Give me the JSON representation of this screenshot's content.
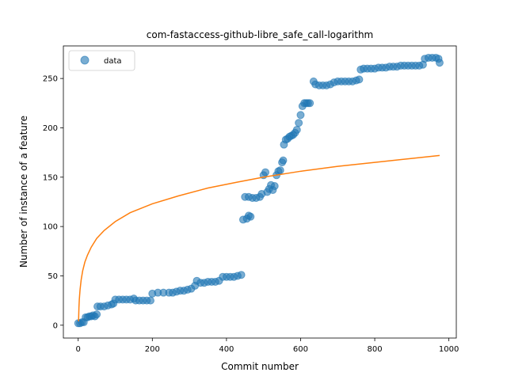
{
  "chart_data": {
    "type": "scatter",
    "title": "com-fastaccess-github-libre_safe_call-logarithm",
    "xlabel": "Commit number",
    "ylabel": "Number of instance of a feature",
    "xlim": [
      -40,
      1020
    ],
    "ylim": [
      -13,
      283
    ],
    "xticks": [
      0,
      200,
      400,
      600,
      800,
      1000
    ],
    "yticks": [
      0,
      50,
      100,
      150,
      200,
      250
    ],
    "grid": false,
    "legend_position": "upper-left",
    "series": [
      {
        "name": "data",
        "kind": "scatter",
        "color": "#1f77b4",
        "points": [
          [
            0,
            2
          ],
          [
            5,
            2
          ],
          [
            10,
            3
          ],
          [
            15,
            3
          ],
          [
            20,
            8
          ],
          [
            25,
            8
          ],
          [
            30,
            9
          ],
          [
            35,
            9
          ],
          [
            40,
            10
          ],
          [
            45,
            9
          ],
          [
            50,
            11
          ],
          [
            52,
            19
          ],
          [
            60,
            19
          ],
          [
            70,
            19
          ],
          [
            80,
            20
          ],
          [
            90,
            21
          ],
          [
            95,
            22
          ],
          [
            100,
            26
          ],
          [
            110,
            26
          ],
          [
            120,
            26
          ],
          [
            130,
            26
          ],
          [
            140,
            26
          ],
          [
            150,
            27
          ],
          [
            155,
            25
          ],
          [
            165,
            25
          ],
          [
            175,
            25
          ],
          [
            185,
            25
          ],
          [
            195,
            25
          ],
          [
            200,
            32
          ],
          [
            215,
            33
          ],
          [
            230,
            33
          ],
          [
            245,
            33
          ],
          [
            255,
            33
          ],
          [
            265,
            34
          ],
          [
            275,
            35
          ],
          [
            285,
            35
          ],
          [
            295,
            36
          ],
          [
            305,
            37
          ],
          [
            315,
            40
          ],
          [
            320,
            45
          ],
          [
            330,
            43
          ],
          [
            340,
            43
          ],
          [
            350,
            44
          ],
          [
            360,
            44
          ],
          [
            370,
            44
          ],
          [
            380,
            45
          ],
          [
            390,
            49
          ],
          [
            400,
            49
          ],
          [
            410,
            49
          ],
          [
            420,
            49
          ],
          [
            430,
            50
          ],
          [
            440,
            51
          ],
          [
            445,
            107
          ],
          [
            455,
            108
          ],
          [
            460,
            111
          ],
          [
            465,
            110
          ],
          [
            450,
            130
          ],
          [
            460,
            130
          ],
          [
            470,
            129
          ],
          [
            480,
            129
          ],
          [
            490,
            130
          ],
          [
            495,
            133
          ],
          [
            500,
            152
          ],
          [
            505,
            155
          ],
          [
            510,
            135
          ],
          [
            515,
            138
          ],
          [
            520,
            142
          ],
          [
            525,
            137
          ],
          [
            530,
            141
          ],
          [
            535,
            152
          ],
          [
            540,
            156
          ],
          [
            545,
            157
          ],
          [
            550,
            165
          ],
          [
            553,
            167
          ],
          [
            555,
            183
          ],
          [
            560,
            188
          ],
          [
            565,
            189
          ],
          [
            570,
            191
          ],
          [
            575,
            192
          ],
          [
            580,
            193
          ],
          [
            585,
            195
          ],
          [
            590,
            198
          ],
          [
            595,
            205
          ],
          [
            600,
            213
          ],
          [
            605,
            222
          ],
          [
            610,
            225
          ],
          [
            615,
            225
          ],
          [
            620,
            225
          ],
          [
            625,
            225
          ],
          [
            635,
            247
          ],
          [
            640,
            244
          ],
          [
            650,
            243
          ],
          [
            660,
            243
          ],
          [
            670,
            243
          ],
          [
            680,
            244
          ],
          [
            690,
            246
          ],
          [
            700,
            247
          ],
          [
            710,
            247
          ],
          [
            720,
            247
          ],
          [
            730,
            247
          ],
          [
            740,
            247
          ],
          [
            750,
            248
          ],
          [
            758,
            249
          ],
          [
            762,
            259
          ],
          [
            770,
            260
          ],
          [
            780,
            260
          ],
          [
            790,
            260
          ],
          [
            800,
            260
          ],
          [
            810,
            261
          ],
          [
            820,
            261
          ],
          [
            830,
            261
          ],
          [
            840,
            262
          ],
          [
            850,
            262
          ],
          [
            860,
            262
          ],
          [
            870,
            263
          ],
          [
            880,
            263
          ],
          [
            890,
            263
          ],
          [
            900,
            263
          ],
          [
            910,
            263
          ],
          [
            920,
            263
          ],
          [
            930,
            264
          ],
          [
            935,
            270
          ],
          [
            945,
            271
          ],
          [
            955,
            271
          ],
          [
            965,
            271
          ],
          [
            972,
            270
          ],
          [
            975,
            266
          ]
        ]
      },
      {
        "name": "",
        "kind": "line",
        "color": "#ff7f0e",
        "x": [
          1,
          2,
          3,
          5,
          8,
          12,
          18,
          25,
          35,
          50,
          70,
          100,
          140,
          200,
          270,
          350,
          430,
          500,
          600,
          700,
          800,
          900,
          975
        ],
        "values": [
          4,
          18,
          26,
          36,
          46,
          55,
          64,
          71,
          79,
          88,
          96,
          105,
          114,
          123,
          131,
          139,
          145,
          150,
          156,
          161,
          165,
          169,
          172
        ]
      }
    ]
  }
}
